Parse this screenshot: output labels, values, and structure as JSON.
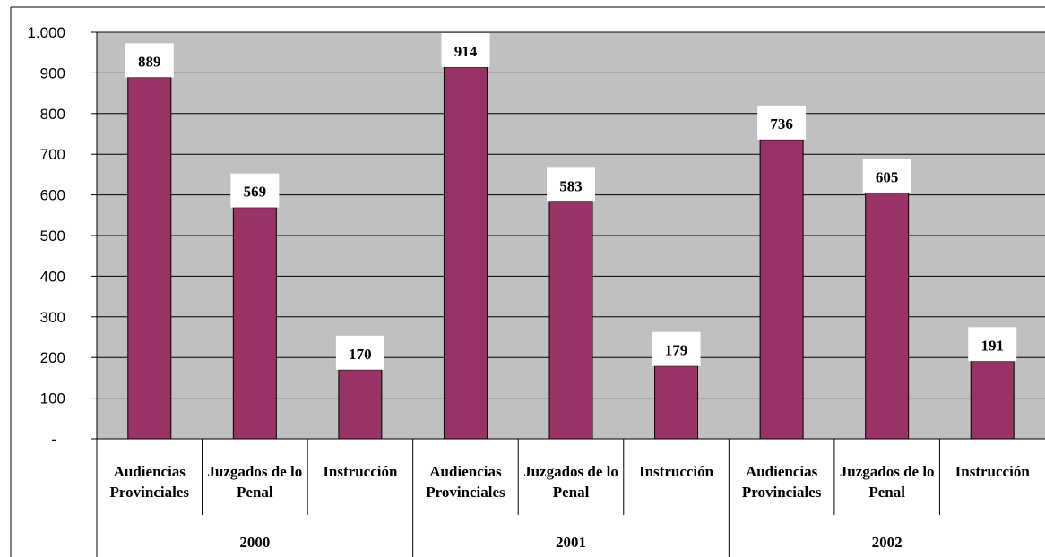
{
  "chart_data": {
    "type": "bar",
    "title": "",
    "xlabel": "",
    "ylabel": "",
    "ylim": [
      0,
      1000
    ],
    "y_ticks": [
      {
        "value": 0,
        "label": "-"
      },
      {
        "value": 100,
        "label": "100"
      },
      {
        "value": 200,
        "label": "200"
      },
      {
        "value": 300,
        "label": "300"
      },
      {
        "value": 400,
        "label": "400"
      },
      {
        "value": 500,
        "label": "500"
      },
      {
        "value": 600,
        "label": "600"
      },
      {
        "value": 700,
        "label": "700"
      },
      {
        "value": 800,
        "label": "800"
      },
      {
        "value": 900,
        "label": "900"
      },
      {
        "value": 1000,
        "label": "1.000"
      }
    ],
    "grid": true,
    "legend": "none",
    "groups": [
      "2000",
      "2001",
      "2002"
    ],
    "categories": [
      [
        "Audiencias",
        "Provinciales"
      ],
      [
        "Juzgados de lo",
        "Penal"
      ],
      [
        "Instrucción"
      ]
    ],
    "values": [
      [
        889,
        569,
        170
      ],
      [
        914,
        583,
        179
      ],
      [
        736,
        605,
        191
      ]
    ],
    "colors": {
      "bar": "#993366",
      "plot_background": "#c0c0c0",
      "label_box": "#ffffff"
    }
  }
}
